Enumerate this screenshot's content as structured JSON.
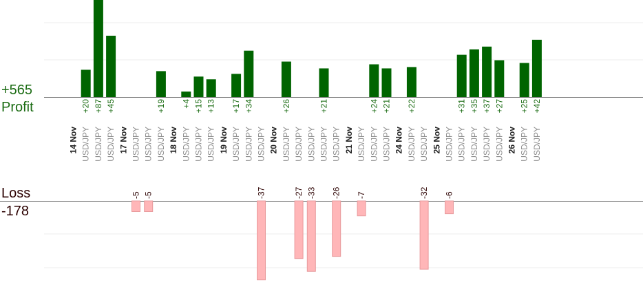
{
  "summary": {
    "profit_total": "+565",
    "profit_label": "Profit",
    "loss_label": "Loss",
    "loss_total": "-178"
  },
  "colors": {
    "profit_bar": "#006400",
    "profit_text": "#1a6b12",
    "loss_bar": "#ffb6b8",
    "loss_bar_border": "#e89a9c",
    "loss_text": "#2b0000",
    "grid": "#ececec",
    "axis": "#777777"
  },
  "chart_data": {
    "type": "bar",
    "columns": [
      {
        "label": "14 Nov",
        "kind": "date"
      },
      {
        "label": "USD/JPY",
        "kind": "trade",
        "profit": 20
      },
      {
        "label": "USD/JPY",
        "kind": "trade",
        "profit": 87
      },
      {
        "label": "USD/JPY",
        "kind": "trade",
        "profit": 45
      },
      {
        "label": "17 Nov",
        "kind": "date"
      },
      {
        "label": "USD/JPY",
        "kind": "trade",
        "loss": -5
      },
      {
        "label": "USD/JPY",
        "kind": "trade",
        "loss": -5
      },
      {
        "label": "USD/JPY",
        "kind": "trade",
        "profit": 19
      },
      {
        "label": "18 Nov",
        "kind": "date"
      },
      {
        "label": "USD/JPY",
        "kind": "trade",
        "profit": 4
      },
      {
        "label": "USD/JPY",
        "kind": "trade",
        "profit": 15
      },
      {
        "label": "USD/JPY",
        "kind": "trade",
        "profit": 13
      },
      {
        "label": "19 Nov",
        "kind": "date"
      },
      {
        "label": "USD/JPY",
        "kind": "trade",
        "profit": 17
      },
      {
        "label": "USD/JPY",
        "kind": "trade",
        "profit": 34
      },
      {
        "label": "USD/JPY",
        "kind": "trade",
        "loss": -37
      },
      {
        "label": "20 Nov",
        "kind": "date"
      },
      {
        "label": "USD/JPY",
        "kind": "trade",
        "profit": 26
      },
      {
        "label": "USD/JPY",
        "kind": "trade",
        "loss": -27
      },
      {
        "label": "USD/JPY",
        "kind": "trade",
        "loss": -33
      },
      {
        "label": "USD/JPY",
        "kind": "trade",
        "profit": 21
      },
      {
        "label": "USD/JPY",
        "kind": "trade",
        "loss": -26
      },
      {
        "label": "21 Nov",
        "kind": "date"
      },
      {
        "label": "USD/JPY",
        "kind": "trade",
        "loss": -7
      },
      {
        "label": "USD/JPY",
        "kind": "trade",
        "profit": 24
      },
      {
        "label": "USD/JPY",
        "kind": "trade",
        "profit": 21
      },
      {
        "label": "24 Nov",
        "kind": "date"
      },
      {
        "label": "USD/JPY",
        "kind": "trade",
        "profit": 22
      },
      {
        "label": "USD/JPY",
        "kind": "trade",
        "loss": -32
      },
      {
        "label": "25 Nov",
        "kind": "date"
      },
      {
        "label": "USD/JPY",
        "kind": "trade",
        "loss": -6
      },
      {
        "label": "USD/JPY",
        "kind": "trade",
        "profit": 31
      },
      {
        "label": "USD/JPY",
        "kind": "trade",
        "profit": 35
      },
      {
        "label": "USD/JPY",
        "kind": "trade",
        "profit": 37
      },
      {
        "label": "USD/JPY",
        "kind": "trade",
        "profit": 27
      },
      {
        "label": "26 Nov",
        "kind": "date"
      },
      {
        "label": "USD/JPY",
        "kind": "trade",
        "profit": 25
      },
      {
        "label": "USD/JPY",
        "kind": "trade",
        "profit": 42
      }
    ]
  }
}
